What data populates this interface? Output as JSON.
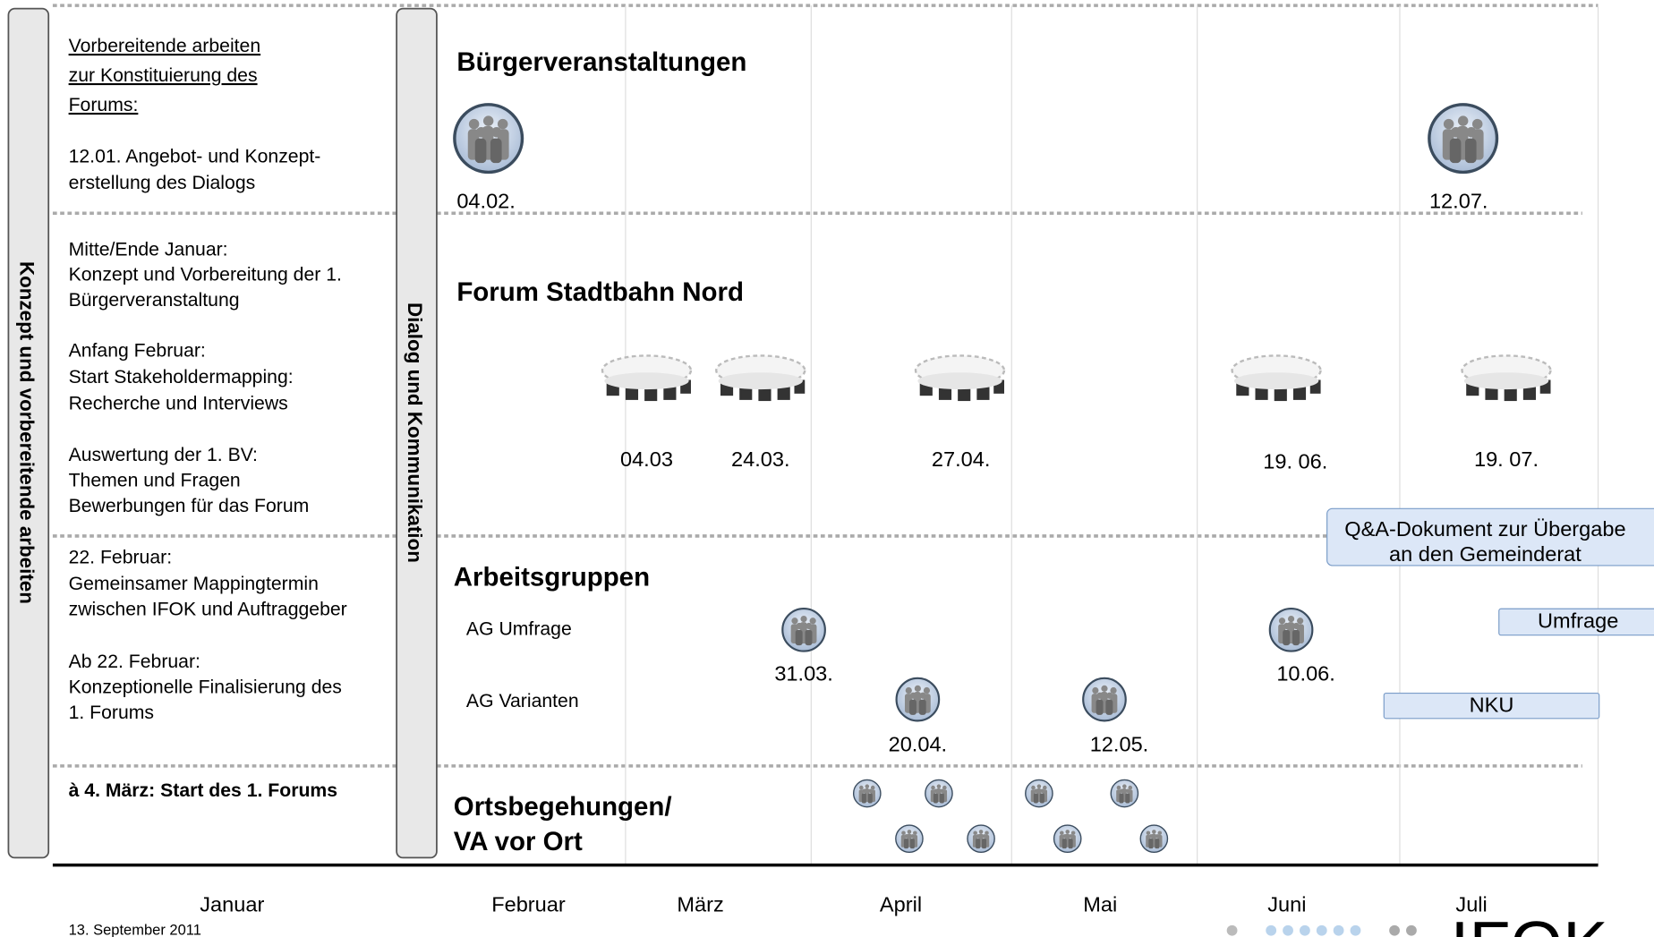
{
  "side_labels": {
    "left": "Konzept und vorbereitende arbeiten",
    "middle": "Dialog und Kommunikation"
  },
  "notes": {
    "s1": {
      "heading": [
        "Vorbereitende arbeiten",
        "zur Konstituierung des",
        "Forums:"
      ],
      "lines": [
        "12.01. Angebot- und Konzept-",
        "erstellung des Dialogs"
      ]
    },
    "s2": [
      "Mitte/Ende Januar:",
      "Konzept und Vorbereitung der 1.",
      "Bürgerveranstaltung",
      "Anfang Februar:",
      "Start Stakeholdermapping:",
      "Recherche und Interviews",
      "Auswertung der 1. BV:",
      "Themen und Fragen",
      "Bewerbungen für das Forum"
    ],
    "s3": [
      "22. Februar:",
      "Gemeinsamer Mappingtermin",
      "zwischen IFOK und Auftraggeber",
      "Ab 22. Februar:",
      "Konzeptionelle Finalisierung des",
      "1. Forums"
    ],
    "s4": "à 4. März: Start des 1. Forums"
  },
  "buerger": {
    "title": "Bürgerveranstaltungen",
    "dates": [
      "04.02.",
      "12.07."
    ]
  },
  "forum": {
    "title": "Forum Stadtbahn Nord",
    "dates": [
      "04.03",
      "24.03.",
      "27.04.",
      "19. 06.",
      "19. 07."
    ],
    "callout": [
      "Q&A-Dokument zur Übergabe",
      "an den Gemeinderat"
    ]
  },
  "ag": {
    "title": "Arbeitsgruppen",
    "groups": [
      "AG Umfrage",
      "AG Varianten"
    ],
    "dates": [
      "31.03.",
      "10.06.",
      "20.04.",
      "12.05."
    ],
    "bars": [
      "Umfrage",
      "NKU"
    ]
  },
  "orts": {
    "title": [
      "Ortsbegehungen/",
      "VA vor Ort"
    ]
  },
  "months": [
    "Januar",
    "Februar",
    "März",
    "April",
    "Mai",
    "Juni",
    "Juli"
  ],
  "footer": {
    "date": "13. September 2011",
    "logo": "IFOK"
  }
}
